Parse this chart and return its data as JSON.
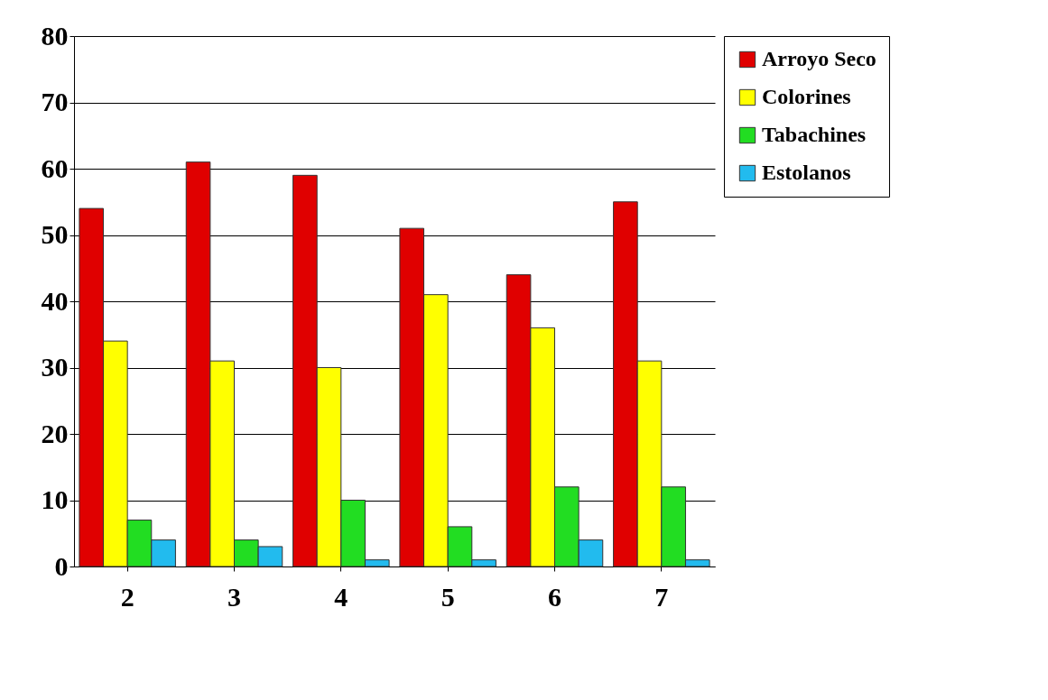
{
  "chart_data": {
    "type": "bar",
    "categories": [
      "2",
      "3",
      "4",
      "5",
      "6",
      "7"
    ],
    "series": [
      {
        "name": "Arroyo Seco",
        "color": "#e00000",
        "values": [
          54,
          61,
          59,
          51,
          44,
          55
        ]
      },
      {
        "name": "Colorines",
        "color": "#ffff00",
        "values": [
          34,
          31,
          30,
          41,
          36,
          31
        ]
      },
      {
        "name": "Tabachines",
        "color": "#22dd22",
        "values": [
          7,
          4,
          10,
          6,
          12,
          12
        ]
      },
      {
        "name": "Estolanos",
        "color": "#22bbee",
        "values": [
          4,
          3,
          1,
          1,
          4,
          1
        ]
      }
    ],
    "ylim": [
      0,
      80
    ],
    "yticks": [
      0,
      10,
      20,
      30,
      40,
      50,
      60,
      70,
      80
    ],
    "grid": "y",
    "legend": "right"
  }
}
